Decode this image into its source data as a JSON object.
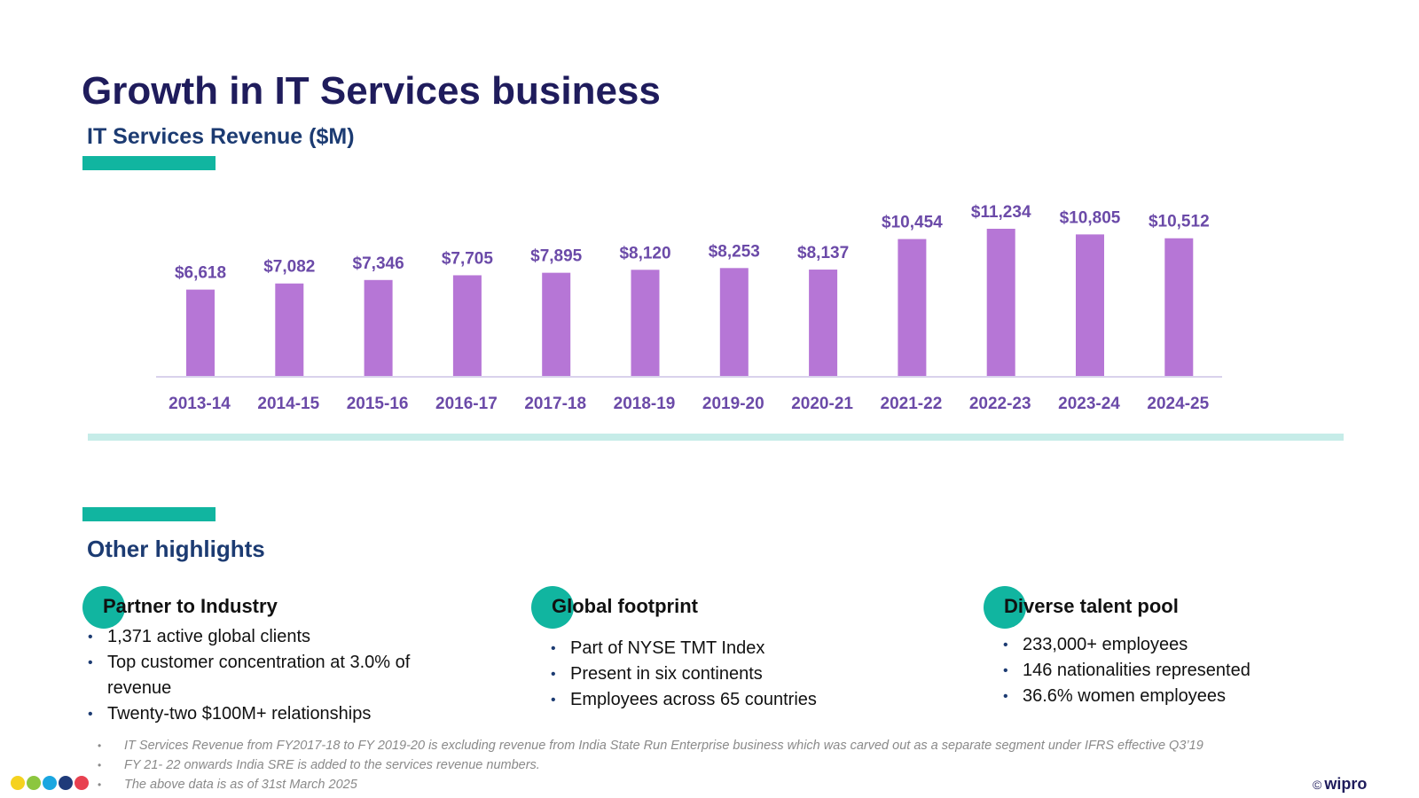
{
  "page": {
    "title": "Growth in IT Services business",
    "subtitle": "IT Services Revenue ($M)",
    "highlights_title": "Other highlights"
  },
  "chart_data": {
    "type": "bar",
    "title": "IT Services Revenue ($M)",
    "categories": [
      "2013-14",
      "2014-15",
      "2015-16",
      "2016-17",
      "2017-18",
      "2018-19",
      "2019-20",
      "2020-21",
      "2021-22",
      "2022-23",
      "2023-24",
      "2024-25"
    ],
    "values": [
      6618,
      7082,
      7346,
      7705,
      7895,
      8120,
      8253,
      8137,
      10454,
      11234,
      10805,
      10512
    ],
    "value_labels": [
      "$6,618",
      "$7,082",
      "$7,346",
      "$7,705",
      "$7,895",
      "$8,120",
      "$8,253",
      "$8,137",
      "$10,454",
      "$11,234",
      "$10,805",
      "$10,512"
    ],
    "xlabel": "",
    "ylabel": "",
    "ylim": [
      0,
      12000
    ],
    "grid": false,
    "legend": "none",
    "colors": {
      "bar": "#b676d6",
      "labels": "#6b4aa8",
      "axis": "#d9d2ec"
    }
  },
  "highlights": [
    {
      "title": "Partner to Industry",
      "items": [
        "1,371 active global clients",
        "Top customer concentration at 3.0% of revenue",
        "Twenty-two $100M+ relationships"
      ]
    },
    {
      "title": "Global footprint",
      "items": [
        "Part of NYSE TMT Index",
        "Present in six continents",
        "Employees across 65 countries"
      ]
    },
    {
      "title": "Diverse talent pool",
      "items": [
        "233,000+ employees",
        "146 nationalities represented",
        "36.6% women employees"
      ]
    }
  ],
  "footnotes": [
    "IT Services Revenue from FY2017-18 to FY 2019-20 is excluding revenue from India State Run Enterprise business which was carved out as a separate segment under IFRS effective Q3’19",
    "FY 21- 22 onwards India SRE is added to the services revenue numbers.",
    "The above data is as of 31st March 2025"
  ],
  "brand": {
    "copyright_symbol": "©",
    "name": "wipro",
    "dot_colors": [
      "#f5d21f",
      "#8cc63f",
      "#1aa6e0",
      "#1f3b7a",
      "#e84150"
    ],
    "accent": "#11b5a0"
  }
}
